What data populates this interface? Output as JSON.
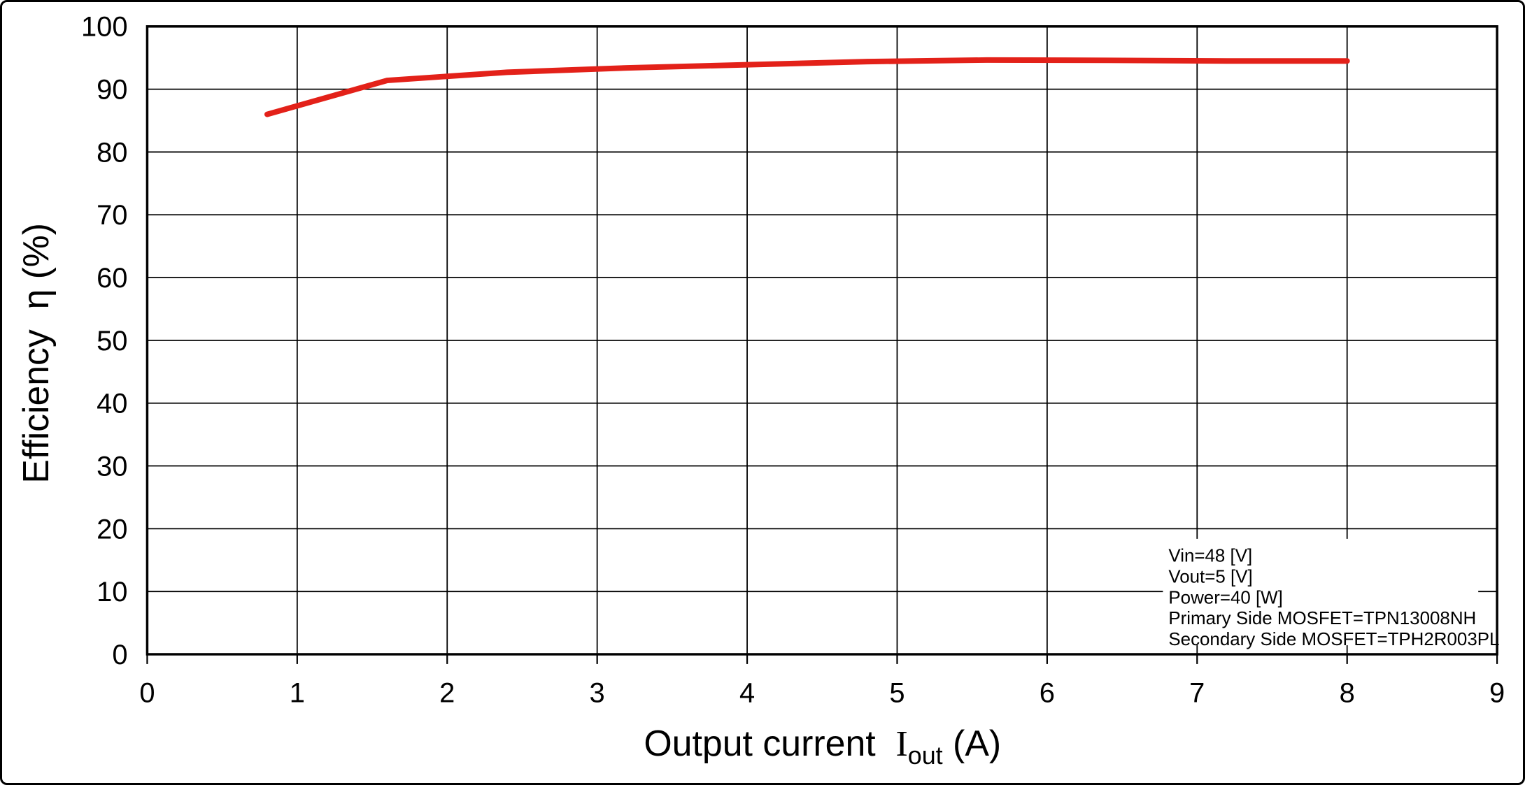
{
  "figure": {
    "background_color": "#ffffff",
    "border_color": "#000000",
    "grid_color": "#000000"
  },
  "chart_data": {
    "type": "line",
    "title": "",
    "xlabel": "Output current Iout (A)",
    "xlabel_parts": {
      "prefix": "Output current",
      "symbol": "I",
      "subscript": "out",
      "suffix": "(A)"
    },
    "ylabel": "Efficiency  η (%)",
    "xlim": [
      0,
      9
    ],
    "ylim": [
      0,
      100
    ],
    "x_ticks": [
      0,
      1,
      2,
      3,
      4,
      5,
      6,
      7,
      8,
      9
    ],
    "y_ticks": [
      0,
      10,
      20,
      30,
      40,
      50,
      60,
      70,
      80,
      90,
      100
    ],
    "grid": true,
    "legend_position": "none",
    "series": [
      {
        "name": "efficiency-curve",
        "color": "#e32119",
        "points": [
          [
            0.8,
            86.0
          ],
          [
            1.6,
            91.4
          ],
          [
            2.4,
            92.7
          ],
          [
            3.2,
            93.4
          ],
          [
            4.0,
            93.9
          ],
          [
            4.8,
            94.4
          ],
          [
            5.6,
            94.65
          ],
          [
            6.4,
            94.6
          ],
          [
            7.2,
            94.5
          ],
          [
            8.0,
            94.5
          ]
        ]
      }
    ],
    "annotation": {
      "lines": [
        "Vin=48 [V]",
        "Vout=5 [V]",
        "Power=40 [W]",
        "Primary Side MOSFET=TPN13008NH",
        "Secondary Side MOSFET=TPH2R003PL"
      ]
    }
  }
}
